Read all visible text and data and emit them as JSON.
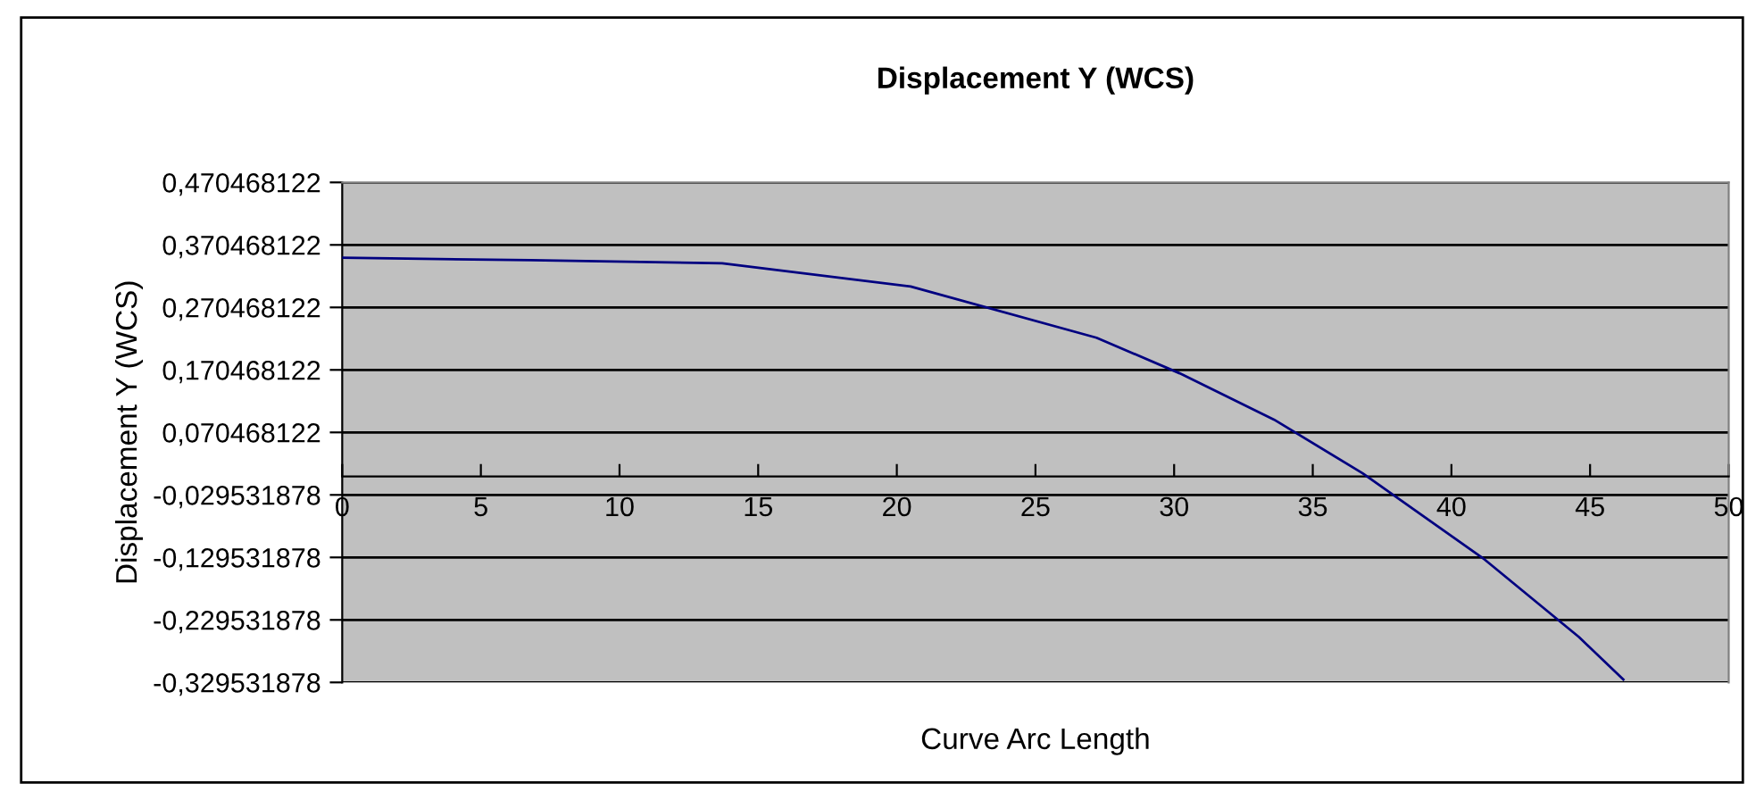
{
  "chart_data": {
    "type": "line",
    "title": "Displacement Y (WCS)",
    "xlabel": "Curve Arc Length",
    "ylabel": "Displacement Y (WCS)",
    "x": [
      0,
      6.8,
      13.7,
      20.5,
      27.2,
      30.2,
      33.6,
      36.8,
      41.2,
      44.6,
      46.2
    ],
    "series": [
      {
        "color": "#000080",
        "values": [
          0.35,
          0.346,
          0.341,
          0.304,
          0.222,
          0.165,
          0.091,
          0.005,
          -0.133,
          -0.257,
          -0.325
        ]
      }
    ],
    "xlim": [
      0,
      50
    ],
    "xticks": [
      0,
      5,
      10,
      15,
      20,
      25,
      30,
      35,
      40,
      45,
      50
    ],
    "ylim": [
      -0.329531878,
      0.470468122
    ],
    "yticks": [
      {
        "value": -0.329531878,
        "label": "-0,329531878"
      },
      {
        "value": -0.229531878,
        "label": "-0,229531878"
      },
      {
        "value": -0.129531878,
        "label": "-0,129531878"
      },
      {
        "value": -0.029531878,
        "label": "-0,029531878"
      },
      {
        "value": 0.070468122,
        "label": "0,070468122"
      },
      {
        "value": 0.170468122,
        "label": "0,170468122"
      },
      {
        "value": 0.270468122,
        "label": "0,270468122"
      },
      {
        "value": 0.370468122,
        "label": "0,370468122"
      },
      {
        "value": 0.470468122,
        "label": "0,470468122"
      }
    ],
    "grid": "y",
    "legend": false,
    "marker": "none",
    "line_style": "solid"
  }
}
